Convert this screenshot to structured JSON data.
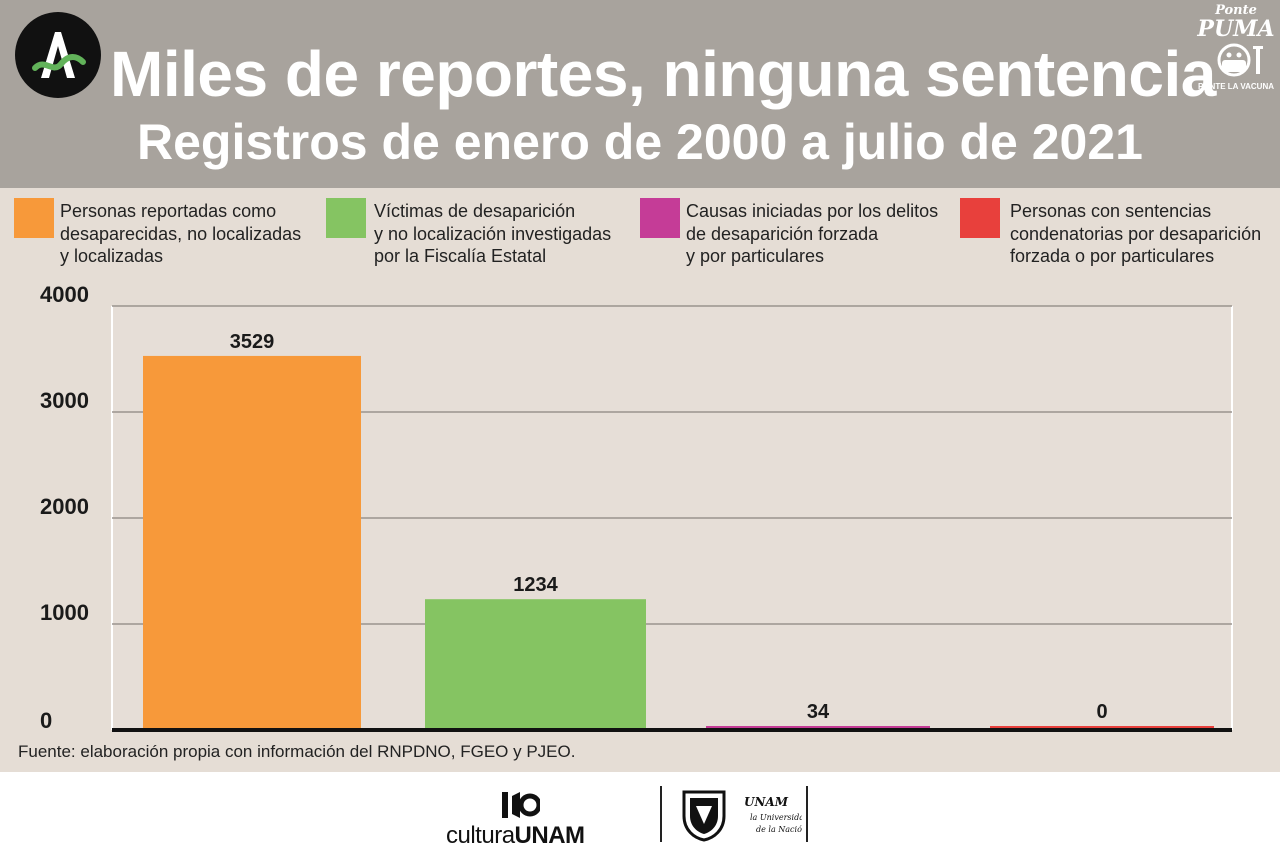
{
  "header": {
    "title": "Miles de reportes, ninguna sentencia",
    "subtitle": "Registros de enero de 2000 a julio de 2021",
    "badge_top": "Ponte",
    "badge_main": "PUMA",
    "badge_bottom": "PONTE LA VACUNA"
  },
  "colors": {
    "header_bg": "#a8a39d",
    "page_bg": "#e5ddd5",
    "orange": "#f7993a",
    "green": "#85c462",
    "magenta": "#c53c97",
    "red": "#e8403c"
  },
  "chart_data": {
    "type": "bar",
    "title": "Miles de reportes, ninguna sentencia",
    "subtitle": "Registros de enero de 2000 a julio de 2021",
    "categories": [
      "Personas reportadas como\ndesaparecidas, no localizadas\ny localizadas",
      "Víctimas de desaparición\ny no localización investigadas\npor la Fiscalía Estatal",
      "Causas iniciadas por los delitos\nde desaparición forzada\ny por particulares",
      "Personas con sentencias\ncondenatorias por desaparición\nforzada o por particulares"
    ],
    "values": [
      3529,
      1234,
      34,
      0
    ],
    "value_labels": [
      "3529",
      "1234",
      "34",
      "0"
    ],
    "bar_colors": [
      "#f7993a",
      "#85c462",
      "#c53c97",
      "#e8403c"
    ],
    "ylim": [
      0,
      4000
    ],
    "yticks": [
      0,
      1000,
      2000,
      3000,
      4000
    ],
    "ytick_labels": [
      "0",
      "1000",
      "2000",
      "3000",
      "4000"
    ],
    "grid": true,
    "legend_position": "top",
    "xlabel": "",
    "ylabel": ""
  },
  "source": "Fuente: elaboración propia con información del RNPDNO, FGEO y PJEO.",
  "footer": {
    "logo_cultura": "cultura",
    "logo_unam": "UNAM",
    "script_lines": [
      "UNAM",
      "la Universidad",
      "de la Nación"
    ]
  }
}
